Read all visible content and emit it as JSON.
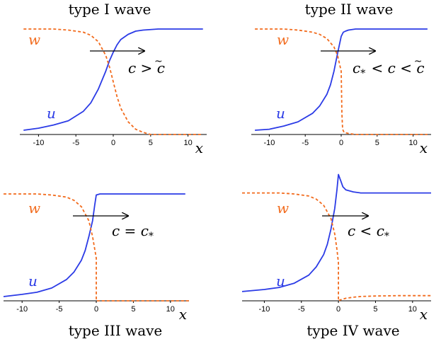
{
  "figure": {
    "background": "#ffffff"
  },
  "colors": {
    "u": "#2b3be6",
    "w": "#f26b1d",
    "arrow": "#000000",
    "axis": "#000000"
  },
  "chart_data": [
    {
      "type": "line",
      "title": "type I wave",
      "xlabel": "x",
      "xticks": [
        -10,
        -5,
        0,
        5,
        10
      ],
      "xlim": [
        -12.5,
        12.5
      ],
      "ylim": [
        0,
        1
      ],
      "series_labels": {
        "u": "u",
        "w": "w"
      },
      "annotation": {
        "prefix": "c >",
        "symbol": "c",
        "accent": "~",
        "text": "",
        "suffix": ""
      },
      "series": [
        {
          "name": "u",
          "style": "solid",
          "x": [
            -12,
            -10,
            -8,
            -6,
            -4,
            -3,
            -2,
            -1,
            -0.5,
            0,
            0.5,
            1,
            2,
            3,
            4,
            6,
            8,
            12
          ],
          "y": [
            0.04,
            0.06,
            0.09,
            0.13,
            0.22,
            0.3,
            0.43,
            0.6,
            0.7,
            0.78,
            0.85,
            0.9,
            0.95,
            0.98,
            0.99,
            1.0,
            1.0,
            1.0
          ]
        },
        {
          "name": "w",
          "style": "dashed",
          "x": [
            -12,
            -8,
            -6,
            -4,
            -3,
            -2,
            -1,
            -0.5,
            0,
            0.5,
            1,
            2,
            3,
            4,
            5,
            6,
            8,
            12
          ],
          "y": [
            1.0,
            1.0,
            0.99,
            0.97,
            0.94,
            0.88,
            0.75,
            0.64,
            0.5,
            0.36,
            0.25,
            0.12,
            0.05,
            0.02,
            0.0,
            0.0,
            0.0,
            0.0
          ]
        }
      ]
    },
    {
      "type": "line",
      "title": "type II wave",
      "xlabel": "x",
      "xticks": [
        -10,
        -5,
        0,
        5,
        10
      ],
      "xlim": [
        -12.5,
        12.5
      ],
      "ylim": [
        0,
        1
      ],
      "series_labels": {
        "u": "u",
        "w": "w"
      },
      "annotation": {
        "prefix": "",
        "symbol": "c",
        "accent": "~",
        "text": "c*",
        "suffix": "< c <"
      },
      "series": [
        {
          "name": "u",
          "style": "solid",
          "x": [
            -12,
            -10,
            -8,
            -6,
            -4,
            -3,
            -2,
            -1.5,
            -1,
            -0.5,
            0,
            0.3,
            0.6,
            1,
            2,
            3,
            5,
            12
          ],
          "y": [
            0.04,
            0.05,
            0.08,
            0.12,
            0.2,
            0.27,
            0.38,
            0.47,
            0.6,
            0.77,
            0.93,
            0.97,
            0.98,
            0.99,
            1.0,
            1.0,
            1.0,
            1.0
          ]
        },
        {
          "name": "w",
          "style": "dashed",
          "x": [
            -12,
            -8,
            -6,
            -4,
            -3,
            -2,
            -1,
            -0.5,
            0,
            0.1,
            0.2,
            0.4,
            1,
            2,
            3,
            5,
            8,
            12
          ],
          "y": [
            1.0,
            1.0,
            0.99,
            0.97,
            0.95,
            0.91,
            0.83,
            0.75,
            0.6,
            0.2,
            0.05,
            0.02,
            0.01,
            0.0,
            0.0,
            0.0,
            0.0,
            0.0
          ]
        }
      ]
    },
    {
      "type": "line",
      "title": "type III wave",
      "xlabel": "x",
      "xticks": [
        -10,
        -5,
        0,
        5,
        10
      ],
      "xlim": [
        -12.5,
        12.5
      ],
      "ylim": [
        0,
        1
      ],
      "series_labels": {
        "u": "u",
        "w": "w"
      },
      "annotation": {
        "prefix": "c =",
        "symbol": "",
        "accent": "",
        "text": "c*",
        "suffix": ""
      },
      "series": [
        {
          "name": "u",
          "style": "solid",
          "x": [
            -12.5,
            -10,
            -8,
            -6,
            -4,
            -3,
            -2,
            -1.5,
            -1,
            -0.5,
            -0.2,
            0,
            0.5,
            1,
            3,
            6,
            9,
            12
          ],
          "y": [
            0.04,
            0.06,
            0.08,
            0.12,
            0.2,
            0.27,
            0.38,
            0.47,
            0.6,
            0.75,
            0.9,
            0.99,
            1.0,
            1.0,
            1.0,
            1.0,
            1.0,
            1.0
          ]
        },
        {
          "name": "w",
          "style": "dashed",
          "x": [
            -12.5,
            -8,
            -6,
            -4,
            -3,
            -2,
            -1,
            -0.5,
            -0.2,
            0,
            0,
            0.5,
            2,
            4,
            6,
            8,
            10,
            12.5
          ],
          "y": [
            1.0,
            1.0,
            0.99,
            0.97,
            0.94,
            0.88,
            0.75,
            0.6,
            0.48,
            0.4,
            0.0,
            0.0,
            0.0,
            0.0,
            0.0,
            0.0,
            0.0,
            0.0
          ]
        }
      ]
    },
    {
      "type": "line",
      "title": "type IV wave",
      "xlabel": "x",
      "xticks": [
        -10,
        -5,
        0,
        5,
        10
      ],
      "xlim": [
        -13,
        12.5
      ],
      "ylim": [
        -0.05,
        1.19
      ],
      "series_labels": {
        "u": "u",
        "w": "w"
      },
      "annotation": {
        "prefix": "c <",
        "symbol": "",
        "accent": "",
        "text": "c*",
        "suffix": ""
      },
      "series": [
        {
          "name": "u",
          "style": "solid",
          "x": [
            -13,
            -10,
            -8,
            -6,
            -4,
            -3,
            -2,
            -1.5,
            -1,
            -0.5,
            -0.2,
            0,
            0.3,
            0.6,
            1,
            2,
            3,
            5,
            8,
            12.5
          ],
          "y": [
            0.04,
            0.06,
            0.08,
            0.12,
            0.2,
            0.28,
            0.4,
            0.5,
            0.65,
            0.85,
            1.03,
            1.18,
            1.12,
            1.06,
            1.03,
            1.01,
            1.0,
            1.0,
            1.0,
            1.0
          ]
        },
        {
          "name": "w",
          "style": "dashed",
          "x": [
            -13,
            -8,
            -6,
            -4,
            -3,
            -2,
            -1,
            -0.5,
            -0.2,
            0,
            0,
            0.3,
            1,
            2,
            3,
            5,
            8,
            12.5
          ],
          "y": [
            1.0,
            1.0,
            0.99,
            0.97,
            0.94,
            0.88,
            0.75,
            0.6,
            0.45,
            0.32,
            -0.05,
            -0.04,
            -0.025,
            -0.015,
            -0.008,
            -0.003,
            0.0,
            0.0
          ]
        }
      ]
    }
  ]
}
